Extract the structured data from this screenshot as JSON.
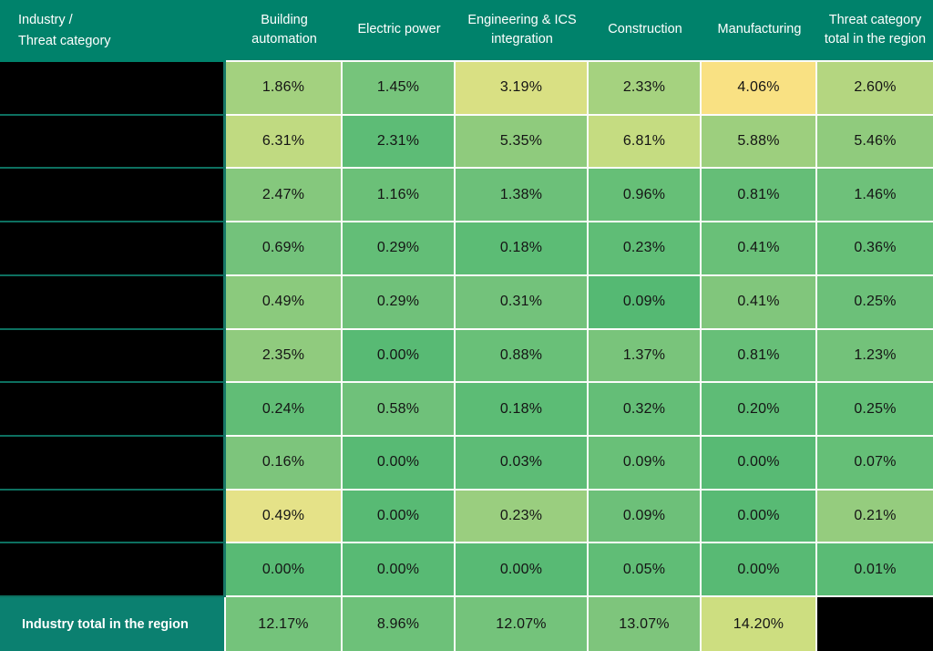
{
  "chart_data": {
    "type": "heatmap",
    "unit": "%",
    "corner_header": {
      "line1": "Industry /",
      "line2": "Threat category"
    },
    "columns": [
      "Building automation",
      "Electric power",
      "Engineering & ICS integration",
      "Construction",
      "Manufacturing",
      "Threat category total in the region"
    ],
    "row_labels_redacted": true,
    "rows": [
      {
        "label_redacted": true,
        "values": [
          1.86,
          1.45,
          3.19,
          2.33,
          4.06,
          2.6
        ],
        "colors": [
          "#A3D17F",
          "#76C47B",
          "#D9E083",
          "#A5D27F",
          "#F9E183",
          "#B4D680"
        ]
      },
      {
        "label_redacted": true,
        "values": [
          6.31,
          2.31,
          5.35,
          6.81,
          5.88,
          5.46
        ],
        "colors": [
          "#C0DA81",
          "#5DBC76",
          "#8FCB7D",
          "#C5DC81",
          "#9DCF7E",
          "#90CB7D"
        ]
      },
      {
        "label_redacted": true,
        "values": [
          2.47,
          1.16,
          1.38,
          0.96,
          0.81,
          1.46
        ],
        "colors": [
          "#85C87D",
          "#6BC078",
          "#6CC079",
          "#66BF77",
          "#65BE77",
          "#6EC17A"
        ]
      },
      {
        "label_redacted": true,
        "values": [
          0.69,
          0.29,
          0.18,
          0.23,
          0.41,
          0.36
        ],
        "colors": [
          "#73C27B",
          "#63BE77",
          "#5CBC75",
          "#5FBD76",
          "#69C078",
          "#66BF77"
        ]
      },
      {
        "label_redacted": true,
        "values": [
          0.49,
          0.29,
          0.31,
          0.09,
          0.41,
          0.25
        ],
        "colors": [
          "#8BCA7D",
          "#70C17A",
          "#73C27B",
          "#55B973",
          "#81C67C",
          "#6CC079"
        ]
      },
      {
        "label_redacted": true,
        "values": [
          2.35,
          0.0,
          0.88,
          1.37,
          0.81,
          1.23
        ],
        "colors": [
          "#90CB7E",
          "#58BA74",
          "#69C078",
          "#79C47B",
          "#67BF78",
          "#73C27A"
        ]
      },
      {
        "label_redacted": true,
        "values": [
          0.24,
          0.58,
          0.18,
          0.32,
          0.2,
          0.25
        ],
        "colors": [
          "#61BD76",
          "#6FC17A",
          "#5CBC75",
          "#64BE77",
          "#5EBC76",
          "#62BE76"
        ]
      },
      {
        "label_redacted": true,
        "values": [
          0.16,
          0.0,
          0.03,
          0.09,
          0.0,
          0.07
        ],
        "colors": [
          "#7DC57C",
          "#58BA74",
          "#5DBC76",
          "#69C078",
          "#58BA74",
          "#65BF77"
        ]
      },
      {
        "label_redacted": true,
        "values": [
          0.49,
          0.0,
          0.23,
          0.09,
          0.0,
          0.21
        ],
        "colors": [
          "#E5E288",
          "#58BA74",
          "#9ACE7F",
          "#6DC079",
          "#58BA74",
          "#95CC7E"
        ]
      },
      {
        "label_redacted": true,
        "values": [
          0.0,
          0.0,
          0.0,
          0.05,
          0.0,
          0.01
        ],
        "colors": [
          "#58BA74",
          "#58BA74",
          "#58BA74",
          "#60BD76",
          "#58BA74",
          "#5ABB75"
        ]
      }
    ],
    "footer": {
      "label": "Industry total in the region",
      "values": [
        12.17,
        8.96,
        12.07,
        13.07,
        14.2
      ],
      "colors": [
        "#74C37B",
        "#6DC179",
        "#74C37B",
        "#7EC57C",
        "#CDDE80"
      ],
      "last_cell_redacted": true
    },
    "colors": {
      "header_bg": "#00826B",
      "footer_label_bg": "#0B8070",
      "redaction": "#000000",
      "grid_line": "#FBFCFA",
      "label_divider": "#0D7060",
      "label_column_border": "#187767",
      "header_text": "#FFFFFF",
      "cell_text": "#141414",
      "scale_min_color": "#58BA74",
      "scale_max_color": "#F9E183"
    }
  }
}
